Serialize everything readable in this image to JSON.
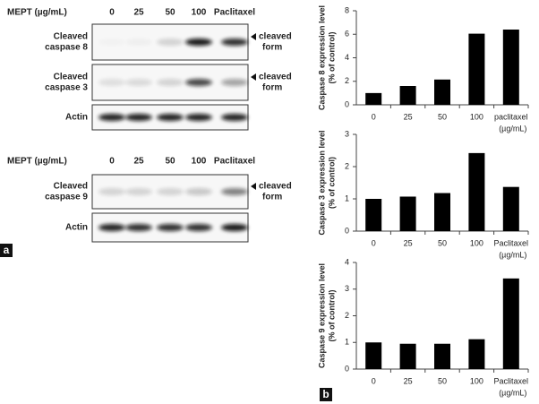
{
  "panel_labels": [
    "a",
    "b"
  ],
  "blots": [
    {
      "header": "MEPT (µg/mL)",
      "lanes": [
        "0",
        "25",
        "50",
        "100",
        "Paclitaxel"
      ],
      "rows": [
        {
          "label": [
            "Cleaved",
            "caspase 8"
          ],
          "annotation": [
            "cleaved",
            "form"
          ]
        },
        {
          "label": [
            "Cleaved",
            "caspase 3"
          ],
          "annotation": [
            "cleaved",
            "form"
          ]
        },
        {
          "label": [
            "Actin"
          ]
        }
      ]
    },
    {
      "header": "MEPT (µg/mL)",
      "lanes": [
        "0",
        "25",
        "50",
        "100",
        "Paclitaxel"
      ],
      "rows": [
        {
          "label": [
            "Cleaved",
            "caspase 9"
          ],
          "annotation": [
            "cleaved",
            "form"
          ]
        },
        {
          "label": [
            "Actin"
          ]
        }
      ]
    }
  ],
  "chart_data": [
    {
      "type": "bar",
      "ylabel": [
        "Caspase 8 expression level",
        "(% of control)"
      ],
      "categories": [
        "0",
        "25",
        "50",
        "100",
        "paclitaxel"
      ],
      "x_unit": "(µg/mL)",
      "values": [
        1,
        1.6,
        2.15,
        6.05,
        6.4
      ],
      "color": "#000000",
      "ylim": [
        0,
        8
      ],
      "yticks": [
        0,
        2,
        4,
        6,
        8
      ]
    },
    {
      "type": "bar",
      "ylabel": [
        "Caspase 3 expression level",
        "(% of control)"
      ],
      "categories": [
        "0",
        "25",
        "50",
        "100",
        "Paclitaxel"
      ],
      "x_unit": "(µg/mL)",
      "values": [
        1,
        1.07,
        1.18,
        2.42,
        1.37
      ],
      "color": "#000000",
      "ylim": [
        0,
        3
      ],
      "yticks": [
        0,
        1,
        2,
        3
      ]
    },
    {
      "type": "bar",
      "ylabel": [
        "Caspase 9 expression level",
        "(% of control)"
      ],
      "categories": [
        "0",
        "25",
        "50",
        "100",
        "Paclitaxel"
      ],
      "x_unit": "(µg/mL)",
      "values": [
        1,
        0.95,
        0.95,
        1.12,
        3.4
      ],
      "color": "#000000",
      "ylim": [
        0,
        4
      ],
      "yticks": [
        0,
        1,
        2,
        3,
        4
      ]
    }
  ]
}
